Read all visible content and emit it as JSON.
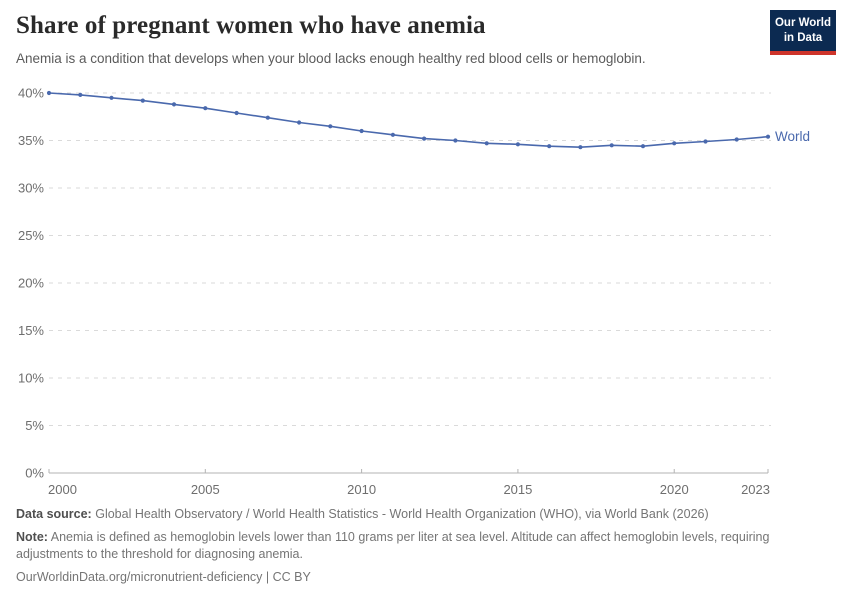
{
  "header": {
    "title": "Share of pregnant women who have anemia",
    "subtitle": "Anemia is a condition that develops when your blood lacks enough healthy red blood cells or hemoglobin."
  },
  "logo": {
    "line1": "Our World",
    "line2": "in Data",
    "bg_color": "#0C2A51",
    "stripe_color": "#CE342B"
  },
  "chart_data": {
    "type": "line",
    "title": "Share of pregnant women who have anemia",
    "xlabel": "",
    "ylabel": "",
    "x_range": [
      2000,
      2023
    ],
    "ylim": [
      0,
      40
    ],
    "grid": true,
    "grid_style": "dashed",
    "legend_position": "end-of-line-label",
    "axis_color": "#6e6e6e",
    "grid_color": "#dadada",
    "baseline_color": "#b3b3b3",
    "x_ticks": [
      {
        "v": 2000,
        "label": "2000"
      },
      {
        "v": 2005,
        "label": "2005"
      },
      {
        "v": 2010,
        "label": "2010"
      },
      {
        "v": 2015,
        "label": "2015"
      },
      {
        "v": 2020,
        "label": "2020"
      },
      {
        "v": 2023,
        "label": "2023"
      }
    ],
    "y_ticks": [
      {
        "v": 0,
        "label": "0%"
      },
      {
        "v": 5,
        "label": "5%"
      },
      {
        "v": 10,
        "label": "10%"
      },
      {
        "v": 15,
        "label": "15%"
      },
      {
        "v": 20,
        "label": "20%"
      },
      {
        "v": 25,
        "label": "25%"
      },
      {
        "v": 30,
        "label": "30%"
      },
      {
        "v": 35,
        "label": "35%"
      },
      {
        "v": 40,
        "label": "40%"
      }
    ],
    "series": [
      {
        "name": "World",
        "color": "#4A69AD",
        "x": [
          2000,
          2001,
          2002,
          2003,
          2004,
          2005,
          2006,
          2007,
          2008,
          2009,
          2010,
          2011,
          2012,
          2013,
          2014,
          2015,
          2016,
          2017,
          2018,
          2019,
          2020,
          2021,
          2022,
          2023
        ],
        "values": [
          40.0,
          39.8,
          39.5,
          39.2,
          38.8,
          38.4,
          37.9,
          37.4,
          36.9,
          36.5,
          36.0,
          35.6,
          35.2,
          35.0,
          34.7,
          34.6,
          34.4,
          34.3,
          34.5,
          34.4,
          34.7,
          34.9,
          35.1,
          35.4
        ]
      }
    ]
  },
  "footer": {
    "data_source_label": "Data source:",
    "data_source_text": "Global Health Observatory / World Health Statistics - World Health Organization (WHO), via World Bank (2026)",
    "note_label": "Note:",
    "note_text": "Anemia is defined as hemoglobin levels lower than 110 grams per liter at sea level. Altitude can affect hemoglobin levels, requiring adjustments to the threshold for diagnosing anemia.",
    "citation": "OurWorldinData.org/micronutrient-deficiency | CC BY"
  }
}
